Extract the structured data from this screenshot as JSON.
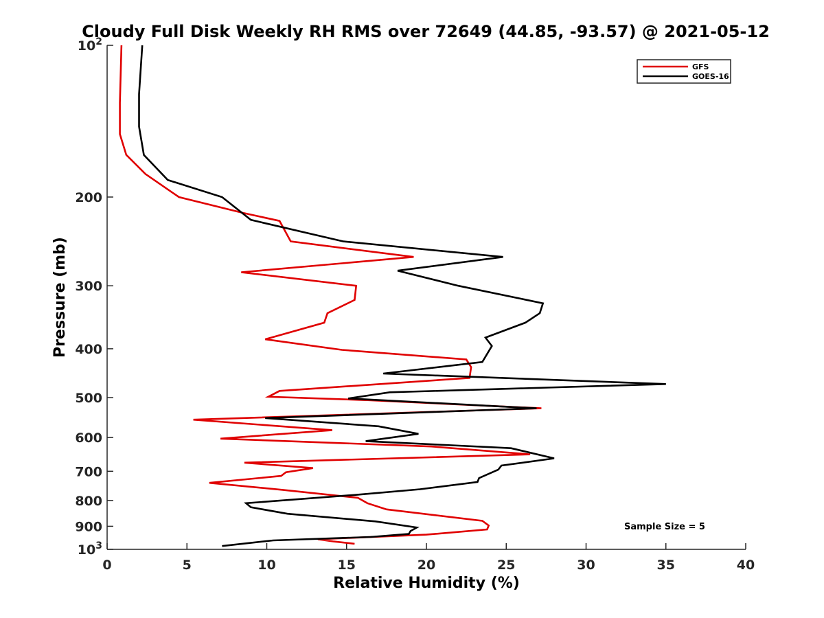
{
  "chart_data": {
    "type": "line",
    "title": "Cloudy Full Disk Weekly RH RMS over 72649 (44.85, -93.57) @ 2021-05-12",
    "xlabel": "Relative Humidity (%)",
    "ylabel": "Pressure (mb)",
    "xlim": [
      0,
      40
    ],
    "ylim": [
      100,
      1000
    ],
    "yscale": "log",
    "y_reversed": true,
    "grid": false,
    "legend_position": "top-right",
    "x_ticks": [
      "0",
      "5",
      "10",
      "15",
      "20",
      "25",
      "30",
      "35",
      "40"
    ],
    "y_ticks": [
      {
        "value": 100,
        "base": "10",
        "exp": "2"
      },
      {
        "value": 200,
        "label": "200"
      },
      {
        "value": 300,
        "label": "300"
      },
      {
        "value": 400,
        "label": "400"
      },
      {
        "value": 500,
        "label": "500"
      },
      {
        "value": 600,
        "label": "600"
      },
      {
        "value": 700,
        "label": "700"
      },
      {
        "value": 800,
        "label": "800"
      },
      {
        "value": 900,
        "label": "900"
      },
      {
        "value": 1000,
        "base": "10",
        "exp": "3"
      }
    ],
    "annotation": "Sample Size = 5",
    "series": [
      {
        "name": "GFS",
        "color": "#e00000",
        "points": [
          [
            0.9,
            100
          ],
          [
            0.8,
            130
          ],
          [
            0.8,
            150
          ],
          [
            1.2,
            165
          ],
          [
            2.4,
            180
          ],
          [
            4.5,
            200
          ],
          [
            8.5,
            215
          ],
          [
            10.8,
            223
          ],
          [
            11.5,
            245
          ],
          [
            19.2,
            263
          ],
          [
            8.4,
            282
          ],
          [
            15.6,
            300
          ],
          [
            15.5,
            320
          ],
          [
            13.8,
            340
          ],
          [
            13.6,
            355
          ],
          [
            9.9,
            383
          ],
          [
            14.7,
            402
          ],
          [
            22.5,
            420
          ],
          [
            22.8,
            435
          ],
          [
            22.7,
            457
          ],
          [
            10.8,
            485
          ],
          [
            10.1,
            498
          ],
          [
            16.4,
            506
          ],
          [
            27.2,
            525
          ],
          [
            5.4,
            553
          ],
          [
            14.1,
            580
          ],
          [
            7.1,
            603
          ],
          [
            20.3,
            625
          ],
          [
            26.5,
            648
          ],
          [
            8.6,
            673
          ],
          [
            12.9,
            690
          ],
          [
            11.2,
            703
          ],
          [
            10.9,
            715
          ],
          [
            6.4,
            738
          ],
          [
            11.0,
            762
          ],
          [
            15.7,
            790
          ],
          [
            16.3,
            810
          ],
          [
            17.5,
            833
          ],
          [
            23.5,
            878
          ],
          [
            23.9,
            897
          ],
          [
            23.8,
            913
          ],
          [
            20.0,
            935
          ],
          [
            13.2,
            955
          ],
          [
            14.2,
            965
          ],
          [
            15.5,
            975
          ]
        ]
      },
      {
        "name": "GOES-16",
        "color": "#000000",
        "points": [
          [
            2.2,
            100
          ],
          [
            2.0,
            125
          ],
          [
            2.0,
            145
          ],
          [
            2.3,
            165
          ],
          [
            3.8,
            185
          ],
          [
            7.2,
            200
          ],
          [
            9.0,
            222
          ],
          [
            14.8,
            245
          ],
          [
            24.8,
            263
          ],
          [
            18.2,
            280
          ],
          [
            22.0,
            300
          ],
          [
            27.3,
            325
          ],
          [
            27.1,
            340
          ],
          [
            26.2,
            355
          ],
          [
            23.7,
            380
          ],
          [
            24.1,
            395
          ],
          [
            23.5,
            425
          ],
          [
            17.3,
            448
          ],
          [
            35.0,
            470
          ],
          [
            17.7,
            488
          ],
          [
            15.1,
            502
          ],
          [
            26.9,
            525
          ],
          [
            9.9,
            549
          ],
          [
            17.0,
            570
          ],
          [
            19.5,
            590
          ],
          [
            16.2,
            610
          ],
          [
            25.3,
            630
          ],
          [
            28.0,
            660
          ],
          [
            24.7,
            682
          ],
          [
            24.5,
            695
          ],
          [
            23.3,
            722
          ],
          [
            23.2,
            735
          ],
          [
            19.6,
            760
          ],
          [
            15.5,
            780
          ],
          [
            8.7,
            810
          ],
          [
            9.0,
            825
          ],
          [
            11.3,
            850
          ],
          [
            16.8,
            880
          ],
          [
            19.4,
            905
          ],
          [
            19.0,
            920
          ],
          [
            18.9,
            932
          ],
          [
            16.5,
            945
          ],
          [
            10.4,
            960
          ],
          [
            7.2,
            985
          ]
        ]
      }
    ]
  }
}
